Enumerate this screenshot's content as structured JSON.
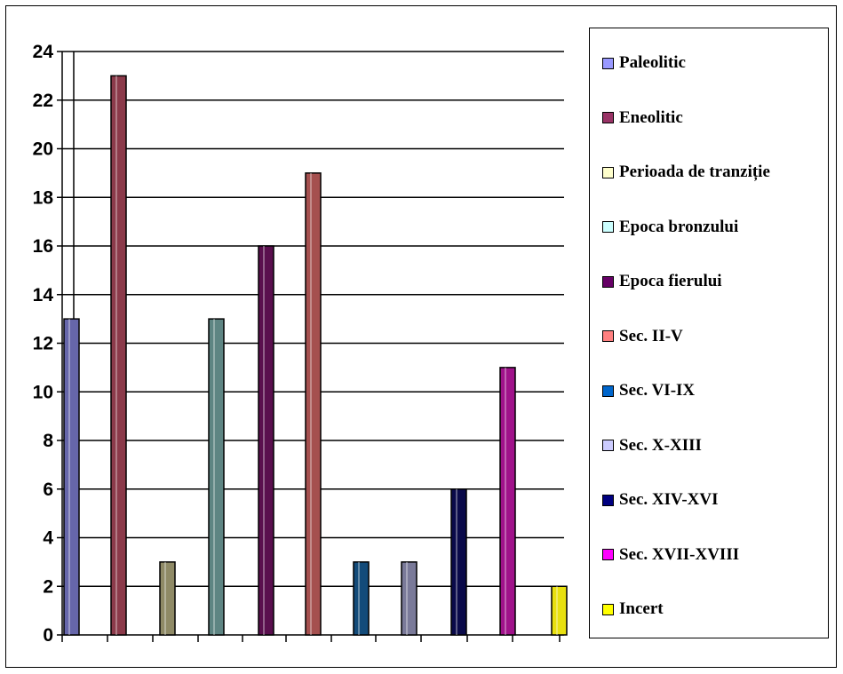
{
  "chart_data": {
    "type": "bar",
    "title": "",
    "xlabel": "",
    "ylabel": "",
    "ylim": [
      0,
      24
    ],
    "yticks": [
      0,
      2,
      4,
      6,
      8,
      10,
      12,
      14,
      16,
      18,
      20,
      22,
      24
    ],
    "grid": "horizontal",
    "legend_position": "right",
    "series": [
      {
        "name": "Paleolitic",
        "value": 13,
        "color": "#6666aa"
      },
      {
        "name": "Eneolitic",
        "value": 23,
        "color": "#8b3a4a"
      },
      {
        "name": "Perioada de tranziție",
        "value": 3,
        "color": "#8f8a66"
      },
      {
        "name": "Epoca bronzului",
        "value": 13,
        "color": "#5e8583"
      },
      {
        "name": "Epoca fierului",
        "value": 16,
        "color": "#5a0f4e"
      },
      {
        "name": "Sec. II-V",
        "value": 19,
        "color": "#a5504f"
      },
      {
        "name": "Sec. VI-IX",
        "value": 3,
        "color": "#134b7a"
      },
      {
        "name": "Sec. X-XIII",
        "value": 3,
        "color": "#7a7a99"
      },
      {
        "name": "Sec. XIV-XVI",
        "value": 6,
        "color": "#0a0a4a"
      },
      {
        "name": "Sec. XVII-XVIII",
        "value": 11,
        "color": "#a0128a"
      },
      {
        "name": "Incert",
        "value": 2,
        "color": "#e8e010"
      }
    ]
  },
  "legend_swatch_colors": [
    "#9999ff",
    "#993366",
    "#ffffcc",
    "#ccffff",
    "#660066",
    "#ff8080",
    "#0066cc",
    "#ccccff",
    "#000080",
    "#ff00ff",
    "#ffff00"
  ]
}
